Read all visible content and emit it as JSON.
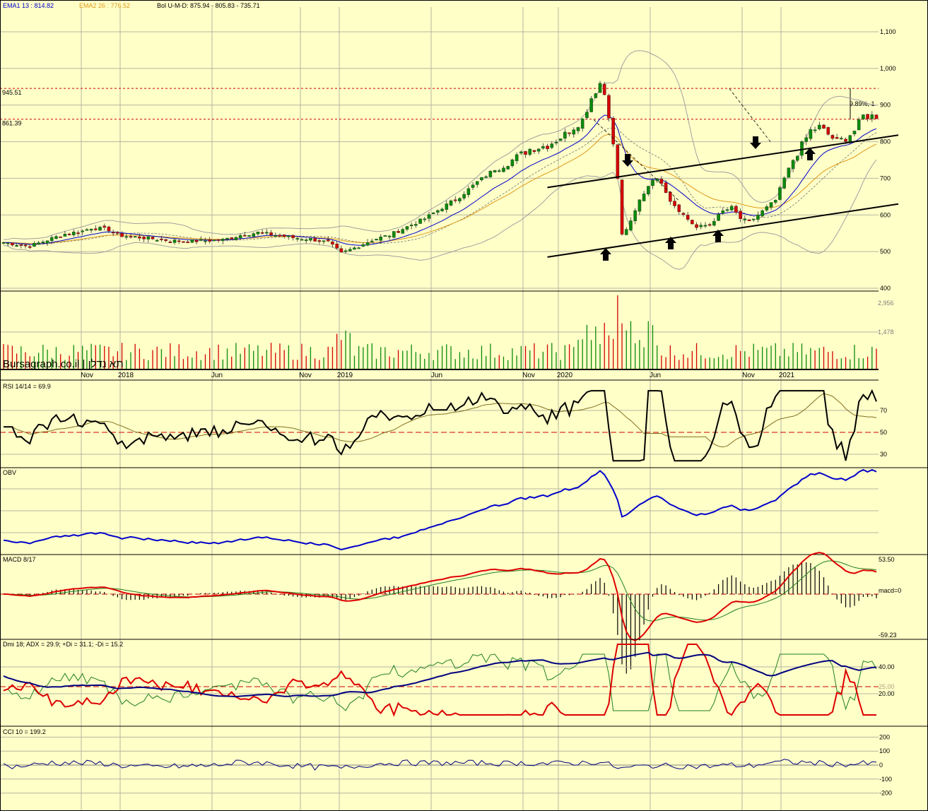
{
  "colors": {
    "background": "#ffffc8",
    "grid": "#b4b4a0",
    "up": "#0a8a0a",
    "down": "#d40000",
    "ema1": "#0000cc",
    "ema2": "#e09a1a",
    "bollinger": "#a0a0a0",
    "obv": "#0000cc",
    "macd": "#dd0000",
    "signal": "#208020",
    "adx": "#000080",
    "pdi": "#208020",
    "mdi": "#dd0000",
    "cci": "#000080",
    "rsi": "#000000",
    "rsi_ma": "#807020"
  },
  "header": {
    "ema1": "EMA1 13 : 814.82",
    "ema2": "EMA2 26 : 776.52",
    "bol": "Bol U-M-D: 875.94 - 805.83 - 735.71"
  },
  "brand": "Bursagraph.co.il | תא נדלן",
  "price_panel": {
    "ticks": [
      "1,100",
      "1,000",
      "900",
      "800",
      "700",
      "600",
      "500",
      "400"
    ],
    "level_labels": [
      "945.51",
      "861.39"
    ],
    "measure_label": "9.89%, 1"
  },
  "volume_panel": {
    "ticks": [
      "2,956",
      "1,478"
    ]
  },
  "time_axis": [
    "Nov",
    "2018",
    "Jun",
    "Nov",
    "2019",
    "Jun",
    "Nov",
    "2020",
    "Jun",
    "Nov",
    "2021"
  ],
  "rsi_panel": {
    "title": "RSI 14/14 = 69.9",
    "ticks": [
      "70",
      "50",
      "30"
    ]
  },
  "obv_panel": {
    "title": "OBV"
  },
  "macd_panel": {
    "title": "MACD 8/17",
    "ticks": [
      "53.50",
      "macd=0",
      "-59.23"
    ]
  },
  "dmi_panel": {
    "title": "Dmi 18; ADX = 29.9; +Di = 31.1; -Di = 15.2",
    "ticks": [
      "40.00",
      "25.00",
      "20.00"
    ]
  },
  "cci_panel": {
    "title": "CCI 10 = 199.2",
    "ticks": [
      "200",
      "100",
      "0",
      "-100",
      "-200"
    ]
  },
  "chart_data": {
    "type": "line",
    "x_labels": [
      "Nov",
      "2018",
      "Jun",
      "Nov",
      "2019",
      "Jun",
      "Nov",
      "2020",
      "Jun",
      "Nov",
      "2021"
    ],
    "price_range": [
      400,
      1100
    ],
    "close_anchor_points": [
      [
        0,
        525
      ],
      [
        4,
        518
      ],
      [
        6,
        515
      ],
      [
        10,
        532
      ],
      [
        14,
        548
      ],
      [
        18,
        556
      ],
      [
        20,
        565
      ],
      [
        24,
        560
      ],
      [
        26,
        545
      ],
      [
        30,
        540
      ],
      [
        34,
        535
      ],
      [
        38,
        530
      ],
      [
        42,
        528
      ],
      [
        46,
        530
      ],
      [
        50,
        532
      ],
      [
        54,
        545
      ],
      [
        58,
        552
      ],
      [
        62,
        545
      ],
      [
        66,
        538
      ],
      [
        70,
        534
      ],
      [
        74,
        525
      ],
      [
        77,
        495
      ],
      [
        80,
        510
      ],
      [
        84,
        532
      ],
      [
        88,
        545
      ],
      [
        92,
        568
      ],
      [
        96,
        590
      ],
      [
        100,
        620
      ],
      [
        104,
        650
      ],
      [
        108,
        690
      ],
      [
        112,
        725
      ],
      [
        116,
        750
      ],
      [
        120,
        780
      ],
      [
        124,
        790
      ],
      [
        128,
        820
      ],
      [
        132,
        860
      ],
      [
        134,
        920
      ],
      [
        136,
        960
      ],
      [
        137,
        930
      ],
      [
        138,
        875
      ],
      [
        140,
        700
      ],
      [
        141,
        545
      ],
      [
        143,
        580
      ],
      [
        145,
        640
      ],
      [
        148,
        700
      ],
      [
        150,
        690
      ],
      [
        152,
        640
      ],
      [
        155,
        600
      ],
      [
        158,
        565
      ],
      [
        161,
        575
      ],
      [
        164,
        610
      ],
      [
        166,
        620
      ],
      [
        168,
        590
      ],
      [
        170,
        580
      ],
      [
        173,
        610
      ],
      [
        176,
        640
      ],
      [
        178,
        700
      ],
      [
        180,
        750
      ],
      [
        182,
        790
      ],
      [
        184,
        830
      ],
      [
        186,
        840
      ],
      [
        188,
        820
      ],
      [
        190,
        800
      ],
      [
        192,
        810
      ],
      [
        194,
        830
      ],
      [
        196,
        870
      ]
    ],
    "ema1_last": 814.82,
    "ema2_last": 776.52,
    "bollinger_last": {
      "upper": 875.94,
      "middle": 805.83,
      "lower": 735.71
    },
    "horizontal_levels": [
      945.51,
      861.39
    ],
    "trend_channel": [
      {
        "from": [
          124,
          485
        ],
        "to": [
          204,
          630
        ]
      },
      {
        "from": [
          124,
          675
        ],
        "to": [
          204,
          818
        ]
      }
    ],
    "indicators": {
      "rsi_last": 69.9,
      "adx": 29.9,
      "plus_di": 31.1,
      "minus_di": 15.2,
      "cci_last": 199.2,
      "macd_range": [
        -59.23,
        53.5
      ]
    }
  }
}
